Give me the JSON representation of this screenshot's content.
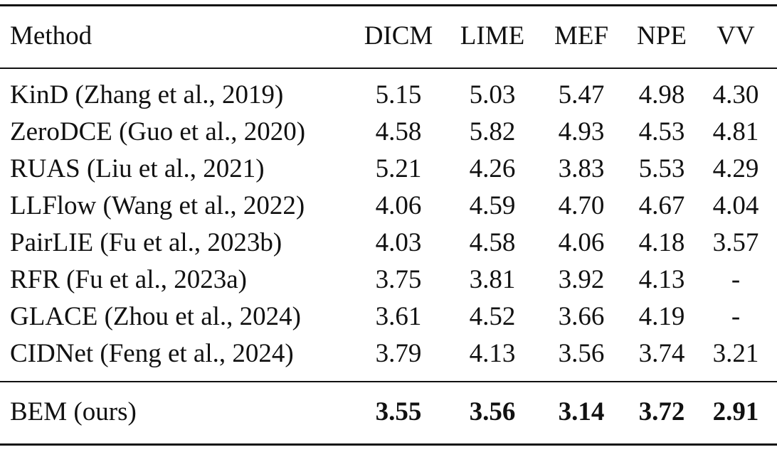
{
  "table": {
    "headers": [
      "Method",
      "DICM",
      "LIME",
      "MEF",
      "NPE",
      "VV"
    ],
    "rows": [
      {
        "method": "KinD (Zhang et al., 2019)",
        "dicm": "5.15",
        "lime": "5.03",
        "mef": "5.47",
        "npe": "4.98",
        "vv": "4.30"
      },
      {
        "method": "ZeroDCE (Guo et al., 2020)",
        "dicm": "4.58",
        "lime": "5.82",
        "mef": "4.93",
        "npe": "4.53",
        "vv": "4.81"
      },
      {
        "method": "RUAS (Liu et al., 2021)",
        "dicm": "5.21",
        "lime": "4.26",
        "mef": "3.83",
        "npe": "5.53",
        "vv": "4.29"
      },
      {
        "method": "LLFlow (Wang et al., 2022)",
        "dicm": "4.06",
        "lime": "4.59",
        "mef": "4.70",
        "npe": "4.67",
        "vv": "4.04"
      },
      {
        "method": "PairLIE (Fu et al., 2023b)",
        "dicm": "4.03",
        "lime": "4.58",
        "mef": "4.06",
        "npe": "4.18",
        "vv": "3.57"
      },
      {
        "method": "RFR (Fu et al., 2023a)",
        "dicm": "3.75",
        "lime": "3.81",
        "mef": "3.92",
        "npe": "4.13",
        "vv": "-"
      },
      {
        "method": "GLACE (Zhou et al., 2024)",
        "dicm": "3.61",
        "lime": "4.52",
        "mef": "3.66",
        "npe": "4.19",
        "vv": "-"
      },
      {
        "method": "CIDNet (Feng et al., 2024)",
        "dicm": "3.79",
        "lime": "4.13",
        "mef": "3.56",
        "npe": "3.74",
        "vv": "3.21"
      }
    ],
    "ours": {
      "method": "BEM (ours)",
      "dicm": "3.55",
      "lime": "3.56",
      "mef": "3.14",
      "npe": "3.72",
      "vv": "2.91"
    }
  }
}
